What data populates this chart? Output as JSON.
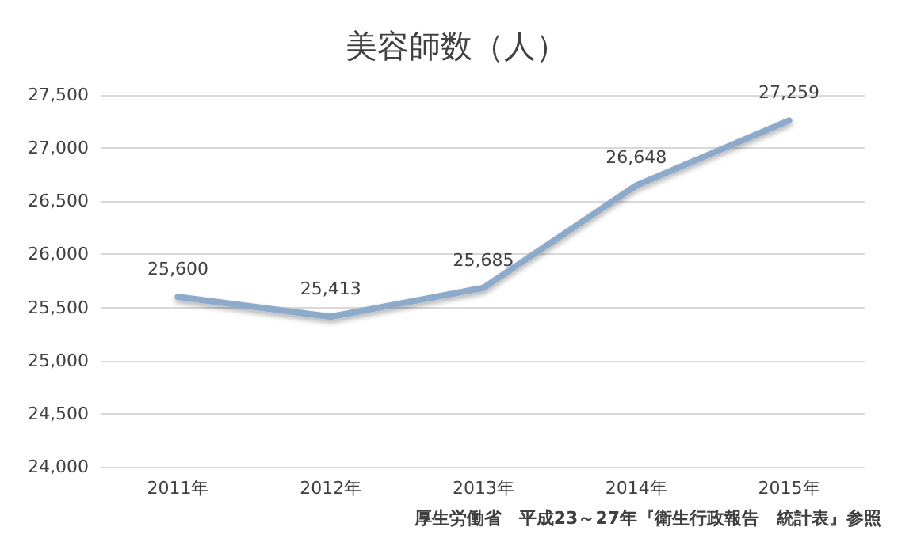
{
  "chart_data": {
    "type": "line",
    "title": "美容師数（人）",
    "categories": [
      "2011年",
      "2012年",
      "2013年",
      "2014年",
      "2015年"
    ],
    "series": [
      {
        "color": "#8eaacb",
        "values": [
          25600,
          25413,
          25685,
          26648,
          27259
        ],
        "value_labels": [
          "25,600",
          "25,413",
          "25,685",
          "26,648",
          "27,259"
        ]
      }
    ],
    "ylim": [
      24000,
      27500
    ],
    "yticks": [
      {
        "value": 24000,
        "label": "24,000"
      },
      {
        "value": 24500,
        "label": "24,500"
      },
      {
        "value": 25000,
        "label": "25,000"
      },
      {
        "value": 25500,
        "label": "25,500"
      },
      {
        "value": 26000,
        "label": "26,000"
      },
      {
        "value": 26500,
        "label": "26,500"
      },
      {
        "value": 27000,
        "label": "27,000"
      },
      {
        "value": 27500,
        "label": "27,500"
      }
    ],
    "grid": "y",
    "marker": "none",
    "line_style": "solid",
    "annotations": [
      "厚生労働省　平成23～27年『衛生行政報告　統計表』参照"
    ]
  }
}
